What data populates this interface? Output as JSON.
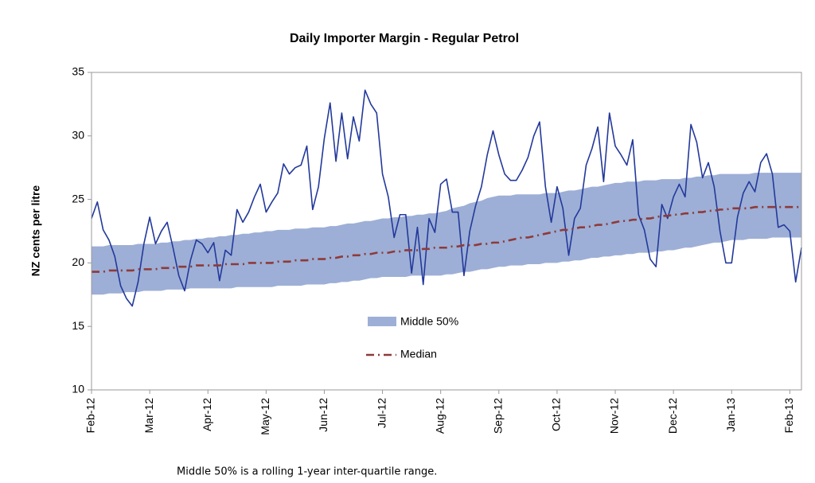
{
  "chart_data": {
    "type": "line",
    "title": "Daily Importer Margin - Regular Petrol",
    "ylabel": "NZ cents per litre",
    "footnote": "Middle 50% is a rolling 1-year inter-quartile range.",
    "ylim": [
      10,
      35
    ],
    "yticks": [
      10,
      15,
      20,
      25,
      30,
      35
    ],
    "grid": false,
    "categories": [
      "Feb-12",
      null,
      null,
      null,
      null,
      null,
      null,
      null,
      null,
      null,
      "Mar-12",
      null,
      null,
      null,
      null,
      null,
      null,
      null,
      null,
      null,
      "Apr-12",
      null,
      null,
      null,
      null,
      null,
      null,
      null,
      null,
      null,
      "May-12",
      null,
      null,
      null,
      null,
      null,
      null,
      null,
      null,
      null,
      "Jun-12",
      null,
      null,
      null,
      null,
      null,
      null,
      null,
      null,
      null,
      "Jul-12",
      null,
      null,
      null,
      null,
      null,
      null,
      null,
      null,
      null,
      "Aug-12",
      null,
      null,
      null,
      null,
      null,
      null,
      null,
      null,
      null,
      "Sep-12",
      null,
      null,
      null,
      null,
      null,
      null,
      null,
      null,
      null,
      "Oct-12",
      null,
      null,
      null,
      null,
      null,
      null,
      null,
      null,
      null,
      "Nov-12",
      null,
      null,
      null,
      null,
      null,
      null,
      null,
      null,
      null,
      "Dec-12",
      null,
      null,
      null,
      null,
      null,
      null,
      null,
      null,
      null,
      "Jan-13",
      null,
      null,
      null,
      null,
      null,
      null,
      null,
      null,
      null,
      "Feb-13",
      null,
      null
    ],
    "line": {
      "color": "#23399b",
      "values": [
        23.5,
        24.8,
        22.6,
        21.8,
        20.5,
        18.2,
        17.2,
        16.6,
        18.5,
        21.5,
        23.6,
        21.5,
        22.5,
        23.2,
        21.2,
        19,
        17.8,
        20.2,
        21.8,
        21.5,
        20.8,
        21.6,
        18.6,
        21,
        20.6,
        24.2,
        23.2,
        24,
        25.2,
        26.2,
        24,
        24.8,
        25.5,
        27.8,
        27,
        27.5,
        27.7,
        29.2,
        24.2,
        26,
        29.8,
        32.6,
        28,
        31.8,
        28.2,
        31.5,
        29.6,
        33.6,
        32.5,
        31.8,
        27,
        25.2,
        22,
        23.8,
        23.8,
        19.2,
        22.8,
        18.3,
        23.5,
        22.4,
        26.2,
        26.6,
        24,
        24,
        19,
        22.5,
        24.5,
        26,
        28.5,
        30.4,
        28.5,
        27,
        26.5,
        26.5,
        27.3,
        28.3,
        30,
        31.1,
        26,
        23.2,
        26,
        24.3,
        20.6,
        23.5,
        24.3,
        27.7,
        29,
        30.7,
        26.4,
        31.8,
        29.2,
        28.5,
        27.7,
        29.7,
        23.8,
        22.6,
        20.3,
        19.7,
        24.6,
        23.5,
        25.2,
        26.2,
        25.2,
        30.9,
        29.5,
        26.7,
        27.9,
        26,
        22.5,
        20,
        20,
        23.6,
        25.5,
        26.4,
        25.6,
        27.9,
        28.6,
        27,
        22.8,
        23,
        22.5,
        18.5,
        21.2
      ]
    },
    "band": {
      "name": "Middle 50%",
      "color": "#9dafd6",
      "upper": [
        21.3,
        21.3,
        21.3,
        21.4,
        21.4,
        21.4,
        21.4,
        21.4,
        21.5,
        21.5,
        21.5,
        21.5,
        21.6,
        21.6,
        21.7,
        21.7,
        21.8,
        21.8,
        21.9,
        21.9,
        22,
        22,
        22.1,
        22.1,
        22.2,
        22.2,
        22.3,
        22.3,
        22.4,
        22.4,
        22.5,
        22.5,
        22.6,
        22.6,
        22.6,
        22.7,
        22.7,
        22.7,
        22.8,
        22.8,
        22.8,
        22.9,
        22.9,
        23,
        23.1,
        23.1,
        23.2,
        23.3,
        23.3,
        23.4,
        23.5,
        23.5,
        23.6,
        23.6,
        23.7,
        23.7,
        23.8,
        23.8,
        23.9,
        23.9,
        24,
        24.1,
        24.3,
        24.4,
        24.5,
        24.7,
        24.8,
        24.9,
        25.1,
        25.2,
        25.3,
        25.3,
        25.3,
        25.4,
        25.4,
        25.4,
        25.4,
        25.4,
        25.5,
        25.5,
        25.5,
        25.6,
        25.7,
        25.7,
        25.8,
        25.9,
        26,
        26,
        26.1,
        26.2,
        26.3,
        26.3,
        26.4,
        26.4,
        26.4,
        26.5,
        26.5,
        26.5,
        26.6,
        26.6,
        26.6,
        26.6,
        26.7,
        26.7,
        26.8,
        26.8,
        26.9,
        26.9,
        27,
        27,
        27,
        27,
        27,
        27,
        27.1,
        27.1,
        27.1,
        27.1,
        27.1,
        27.1,
        27.1,
        27.1,
        27.1
      ],
      "lower": [
        17.5,
        17.5,
        17.5,
        17.6,
        17.6,
        17.6,
        17.7,
        17.7,
        17.7,
        17.8,
        17.8,
        17.8,
        17.8,
        17.9,
        17.9,
        17.9,
        17.9,
        18,
        18,
        18,
        18,
        18,
        18,
        18,
        18,
        18.1,
        18.1,
        18.1,
        18.1,
        18.1,
        18.1,
        18.1,
        18.2,
        18.2,
        18.2,
        18.2,
        18.2,
        18.3,
        18.3,
        18.3,
        18.3,
        18.4,
        18.4,
        18.5,
        18.5,
        18.6,
        18.6,
        18.7,
        18.8,
        18.8,
        18.9,
        18.9,
        18.9,
        18.9,
        18.9,
        19,
        19,
        19,
        19,
        19,
        19,
        19.1,
        19.1,
        19.2,
        19.3,
        19.3,
        19.4,
        19.5,
        19.5,
        19.6,
        19.7,
        19.7,
        19.8,
        19.8,
        19.8,
        19.9,
        19.9,
        19.9,
        20,
        20,
        20,
        20.1,
        20.1,
        20.2,
        20.2,
        20.3,
        20.4,
        20.4,
        20.5,
        20.5,
        20.6,
        20.6,
        20.7,
        20.7,
        20.8,
        20.8,
        20.8,
        20.9,
        20.9,
        21,
        21,
        21.1,
        21.2,
        21.2,
        21.3,
        21.4,
        21.5,
        21.6,
        21.6,
        21.7,
        21.8,
        21.8,
        21.8,
        21.9,
        21.9,
        21.9,
        21.9,
        22,
        22,
        22,
        22,
        22,
        22
      ]
    },
    "median": {
      "name": "Median",
      "color": "#8e3a3a",
      "values": [
        19.3,
        19.3,
        19.3,
        19.4,
        19.4,
        19.4,
        19.4,
        19.4,
        19.5,
        19.5,
        19.5,
        19.5,
        19.6,
        19.6,
        19.6,
        19.7,
        19.7,
        19.7,
        19.8,
        19.8,
        19.8,
        19.8,
        19.8,
        19.9,
        19.9,
        19.9,
        19.9,
        20,
        20,
        20,
        20,
        20,
        20.1,
        20.1,
        20.1,
        20.2,
        20.2,
        20.2,
        20.3,
        20.3,
        20.3,
        20.4,
        20.4,
        20.5,
        20.5,
        20.6,
        20.6,
        20.7,
        20.7,
        20.8,
        20.8,
        20.8,
        20.9,
        20.9,
        21,
        21,
        21,
        21.1,
        21.1,
        21.2,
        21.2,
        21.2,
        21.3,
        21.3,
        21.4,
        21.4,
        21.4,
        21.5,
        21.5,
        21.6,
        21.6,
        21.7,
        21.8,
        21.9,
        22,
        22,
        22.1,
        22.2,
        22.3,
        22.4,
        22.5,
        22.6,
        22.6,
        22.7,
        22.8,
        22.8,
        22.9,
        23,
        23,
        23.1,
        23.2,
        23.3,
        23.3,
        23.4,
        23.4,
        23.5,
        23.5,
        23.6,
        23.7,
        23.7,
        23.8,
        23.8,
        23.9,
        23.9,
        24,
        24,
        24.1,
        24.1,
        24.2,
        24.2,
        24.3,
        24.3,
        24.3,
        24.3,
        24.4,
        24.4,
        24.4,
        24.4,
        24.4,
        24.4,
        24.4,
        24.4,
        24.4
      ]
    }
  }
}
